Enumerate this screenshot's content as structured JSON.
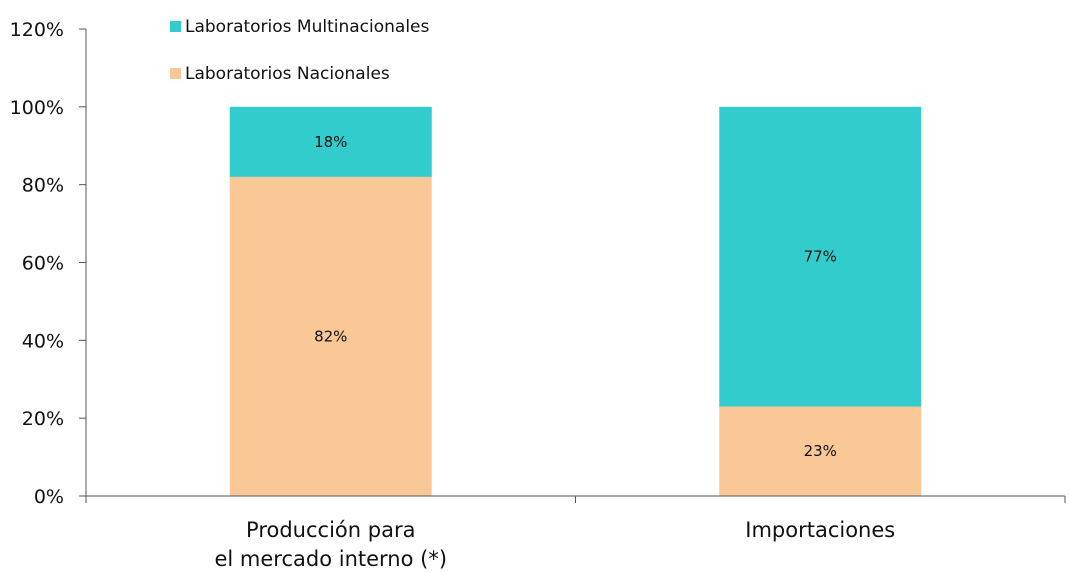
{
  "chart_data": {
    "type": "bar",
    "stacked": true,
    "categories": [
      [
        "Producción para",
        "el mercado interno (*)"
      ],
      [
        "Importaciones"
      ]
    ],
    "series": [
      {
        "name": "Laboratorios Nacionales",
        "values": [
          82,
          23
        ],
        "labels": [
          "82%",
          "23%"
        ],
        "color": "#fac896"
      },
      {
        "name": "Laboratorios Multinacionales",
        "values": [
          18,
          77
        ],
        "labels": [
          "18%",
          "77%"
        ],
        "color": "#33cccc"
      }
    ],
    "ylim": [
      0,
      120
    ],
    "yticks": [
      0,
      20,
      40,
      60,
      80,
      100,
      120
    ],
    "ytick_labels": [
      "0%",
      "20%",
      "40%",
      "60%",
      "80%",
      "100%",
      "120%"
    ],
    "legend": [
      "Laboratorios Multinacionales",
      "Laboratorios Nacionales"
    ],
    "legend_position": "top-left",
    "grid": false
  }
}
